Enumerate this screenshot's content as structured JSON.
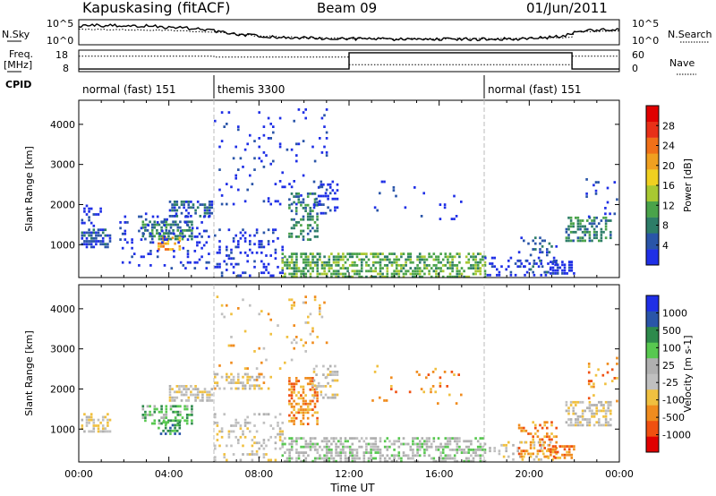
{
  "header": {
    "station": "Kapuskasing (fitACF)",
    "beam": "Beam 09",
    "date": "01/Jun/2011"
  },
  "noise_panel": {
    "left_label": "N.Sky",
    "right_label": "N.Search",
    "left_ticks": [
      "10^5",
      "10^0"
    ],
    "right_ticks": [
      "10^5",
      "10^0"
    ],
    "sky_trace": [
      [
        0,
        0.72
      ],
      [
        0.5,
        0.8
      ],
      [
        1,
        0.75
      ],
      [
        1.5,
        0.8
      ],
      [
        2,
        0.72
      ],
      [
        3,
        0.76
      ],
      [
        4,
        0.7
      ],
      [
        5,
        0.65
      ],
      [
        6,
        0.55
      ],
      [
        7,
        0.42
      ],
      [
        8,
        0.35
      ],
      [
        9,
        0.3
      ],
      [
        10,
        0.27
      ],
      [
        11,
        0.25
      ],
      [
        12,
        0.24
      ],
      [
        13,
        0.23
      ],
      [
        14,
        0.22
      ],
      [
        15,
        0.22
      ],
      [
        16,
        0.23
      ],
      [
        17,
        0.22
      ],
      [
        18,
        0.22
      ],
      [
        19,
        0.23
      ],
      [
        20,
        0.25
      ],
      [
        21,
        0.3
      ],
      [
        21.9,
        0.42
      ],
      [
        22,
        0.55
      ],
      [
        23,
        0.58
      ],
      [
        24,
        0.62
      ]
    ],
    "search_trace": [
      [
        0,
        0.62
      ],
      [
        2,
        0.6
      ],
      [
        4,
        0.58
      ],
      [
        6,
        0.5
      ],
      [
        8,
        0.35
      ],
      [
        10,
        0.28
      ],
      [
        12,
        0.25
      ],
      [
        14,
        0.24
      ],
      [
        16,
        0.24
      ],
      [
        18,
        0.24
      ],
      [
        20,
        0.26
      ],
      [
        21.9,
        0.3
      ],
      [
        22,
        0.52
      ],
      [
        24,
        0.55
      ]
    ]
  },
  "freq_panel": {
    "left_label": "Freq.",
    "left_unit": "[MHz]",
    "right_label": "Nave",
    "left_ticks": [
      "18",
      "8"
    ],
    "right_ticks": [
      "60",
      "0"
    ],
    "freq_trace": [
      [
        0,
        0.12
      ],
      [
        12,
        0.12
      ],
      [
        12,
        0.88
      ],
      [
        21.9,
        0.88
      ],
      [
        21.9,
        0.12
      ],
      [
        24,
        0.12
      ]
    ],
    "nave_trace": [
      [
        0,
        0.72
      ],
      [
        6,
        0.72
      ],
      [
        6,
        0.68
      ],
      [
        12,
        0.68
      ],
      [
        12,
        0.32
      ],
      [
        21.9,
        0.32
      ],
      [
        21.9,
        0.72
      ],
      [
        24,
        0.72
      ]
    ]
  },
  "cpid": {
    "label": "CPID",
    "segments": [
      {
        "name": "normal (fast) 151",
        "start": 0,
        "end": 6
      },
      {
        "name": "themis 3300",
        "start": 6,
        "end": 18
      },
      {
        "name": "normal (fast) 151",
        "start": 18,
        "end": 24
      }
    ]
  },
  "chart_data": [
    {
      "type": "heatmap",
      "panel": "power",
      "x_label": "",
      "ylabel": "Slant Range [km]",
      "xlim": [
        0,
        24
      ],
      "ylim": [
        180,
        4600
      ],
      "yticks": [
        1000,
        2000,
        3000,
        4000
      ],
      "colorbar": {
        "label": "Power [dB]",
        "ticks": [
          "4",
          "8",
          "12",
          "16",
          "20",
          "24",
          "28"
        ],
        "colors": [
          "#1f2fe6",
          "#2a55a8",
          "#2e7d68",
          "#4aa34a",
          "#a8c832",
          "#f0d020",
          "#f0a020",
          "#f07018",
          "#e83018",
          "#e00000"
        ]
      },
      "regions": [
        {
          "t0": 0.1,
          "t1": 1.4,
          "r0": 900,
          "r1": 1400,
          "color": 1,
          "density": 0.55
        },
        {
          "t0": 0.1,
          "t1": 1.0,
          "r0": 1450,
          "r1": 2000,
          "color": 0,
          "density": 0.3
        },
        {
          "t0": 2.8,
          "t1": 5.0,
          "r0": 1100,
          "r1": 1600,
          "color": 2,
          "density": 0.55
        },
        {
          "t0": 4.0,
          "t1": 5.9,
          "r0": 1700,
          "r1": 2100,
          "color": 1,
          "density": 0.6
        },
        {
          "t0": 3.5,
          "t1": 4.5,
          "r0": 900,
          "r1": 1200,
          "color": 6,
          "density": 0.5
        },
        {
          "t0": 1.8,
          "t1": 5.8,
          "r0": 400,
          "r1": 1800,
          "color": 0,
          "density": 0.12
        },
        {
          "t0": 6.0,
          "t1": 9.0,
          "r0": 200,
          "r1": 1400,
          "color": 0,
          "density": 0.22
        },
        {
          "t0": 9.3,
          "t1": 10.6,
          "r0": 1100,
          "r1": 2300,
          "color": 2,
          "density": 0.45
        },
        {
          "t0": 10.4,
          "t1": 11.5,
          "r0": 1800,
          "r1": 2600,
          "color": 0,
          "density": 0.25
        },
        {
          "t0": 9.0,
          "t1": 18.0,
          "r0": 200,
          "r1": 800,
          "color": 3,
          "density": 0.55
        },
        {
          "t0": 6.0,
          "t1": 11.0,
          "r0": 2000,
          "r1": 4400,
          "color": 0,
          "density": 0.05
        },
        {
          "t0": 13.0,
          "t1": 17.0,
          "r0": 1600,
          "r1": 2600,
          "color": 0,
          "density": 0.04
        },
        {
          "t0": 18.0,
          "t1": 21.0,
          "r0": 200,
          "r1": 700,
          "color": 0,
          "density": 0.2
        },
        {
          "t0": 19.5,
          "t1": 21.2,
          "r0": 300,
          "r1": 1200,
          "color": 1,
          "density": 0.18
        },
        {
          "t0": 20.8,
          "t1": 22.0,
          "r0": 250,
          "r1": 600,
          "color": 0,
          "density": 0.5
        },
        {
          "t0": 21.6,
          "t1": 23.6,
          "r0": 1100,
          "r1": 1700,
          "color": 2,
          "density": 0.55
        },
        {
          "t0": 22.5,
          "t1": 23.9,
          "r0": 1700,
          "r1": 2800,
          "color": 0,
          "density": 0.08
        }
      ]
    },
    {
      "type": "heatmap",
      "panel": "velocity",
      "xlabel": "Time UT",
      "ylabel": "Slant Range [km]",
      "xlim": [
        0,
        24
      ],
      "ylim": [
        180,
        4600
      ],
      "xticks": [
        "00:00",
        "04:00",
        "08:00",
        "12:00",
        "16:00",
        "20:00",
        "00:00"
      ],
      "yticks": [
        1000,
        2000,
        3000,
        4000
      ],
      "colorbar": {
        "label": "Velocity [m s-1]",
        "ticks": [
          "-1000",
          "-500",
          "-100",
          "-25",
          "25",
          "100",
          "500",
          "1000"
        ],
        "colors": [
          "#e00000",
          "#f05010",
          "#f08c1e",
          "#f0c040",
          "#c0c0c0",
          "#b0b0b0",
          "#58c850",
          "#2e8a4c",
          "#2a55a8",
          "#1f2fe6"
        ]
      },
      "regions": [
        {
          "t0": 0.1,
          "t1": 1.4,
          "r0": 900,
          "r1": 1400,
          "color": 4,
          "density": 0.55
        },
        {
          "t0": 2.8,
          "t1": 5.0,
          "r0": 1100,
          "r1": 1600,
          "color": 6,
          "density": 0.5
        },
        {
          "t0": 4.0,
          "t1": 5.9,
          "r0": 1700,
          "r1": 2100,
          "color": 4,
          "density": 0.6
        },
        {
          "t0": 3.5,
          "t1": 4.5,
          "r0": 900,
          "r1": 1200,
          "color": 7,
          "density": 0.45
        },
        {
          "t0": 6.0,
          "t1": 8.0,
          "r0": 2000,
          "r1": 2400,
          "color": 4,
          "density": 0.4
        },
        {
          "t0": 6.0,
          "t1": 9.0,
          "r0": 200,
          "r1": 1400,
          "color": 4,
          "density": 0.2
        },
        {
          "t0": 9.3,
          "t1": 10.6,
          "r0": 1100,
          "r1": 2300,
          "color": 2,
          "density": 0.5
        },
        {
          "t0": 10.4,
          "t1": 11.5,
          "r0": 1800,
          "r1": 2600,
          "color": 4,
          "density": 0.3
        },
        {
          "t0": 9.0,
          "t1": 18.0,
          "r0": 200,
          "r1": 800,
          "color": 5,
          "density": 0.5
        },
        {
          "t0": 13.0,
          "t1": 17.0,
          "r0": 1600,
          "r1": 2600,
          "color": 2,
          "density": 0.05
        },
        {
          "t0": 6.0,
          "t1": 11.0,
          "r0": 2000,
          "r1": 4400,
          "color": 3,
          "density": 0.05
        },
        {
          "t0": 18.0,
          "t1": 21.0,
          "r0": 200,
          "r1": 700,
          "color": 4,
          "density": 0.2
        },
        {
          "t0": 19.5,
          "t1": 21.2,
          "r0": 300,
          "r1": 1200,
          "color": 2,
          "density": 0.3
        },
        {
          "t0": 20.8,
          "t1": 22.0,
          "r0": 250,
          "r1": 600,
          "color": 2,
          "density": 0.5
        },
        {
          "t0": 21.6,
          "t1": 23.6,
          "r0": 1100,
          "r1": 1700,
          "color": 4,
          "density": 0.6
        },
        {
          "t0": 22.5,
          "t1": 23.9,
          "r0": 1700,
          "r1": 2800,
          "color": 2,
          "density": 0.08
        }
      ]
    }
  ]
}
